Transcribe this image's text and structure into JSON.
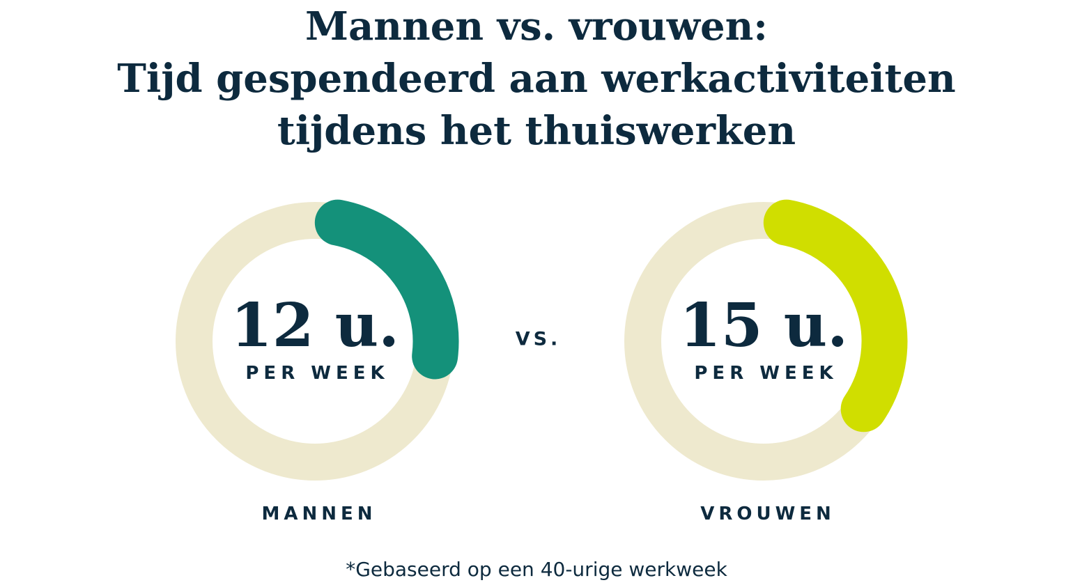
{
  "title": {
    "lines": [
      "Mannen vs. vrouwen:",
      "Tijd gespendeerd aan werkactiviteiten",
      "tijdens het thuiswerken"
    ]
  },
  "separator_label": "VS.",
  "footnote": "*Gebaseerd op een 40-urige werkweek",
  "colors": {
    "background": "#ffffff",
    "text_navy": "#0d2a3e",
    "ring_cream": "#eee9ce",
    "arc_teal": "#14917a",
    "arc_lime": "#d0de00"
  },
  "chart_data": {
    "type": "donut",
    "title": "Mannen vs. vrouwen: Tijd gespendeerd aan werkactiviteiten tijdens het thuiswerken",
    "subtitle_note": "*Gebaseerd op een 40-urige werkweek",
    "reference_total_hours": 40,
    "unit": "uren per week",
    "separator": "VS.",
    "legend_position": "below-each-donut",
    "series": [
      {
        "name": "MANNEN",
        "value_hours": 12,
        "fraction_of_week": 0.3,
        "center_label": "12 u.",
        "center_sublabel": "PER WEEK",
        "arc_color": "#14917a",
        "track_color": "#eee9ce"
      },
      {
        "name": "VROUWEN",
        "value_hours": 15,
        "fraction_of_week": 0.375,
        "center_label": "15 u.",
        "center_sublabel": "PER WEEK",
        "arc_color": "#d0de00",
        "track_color": "#eee9ce"
      }
    ]
  }
}
